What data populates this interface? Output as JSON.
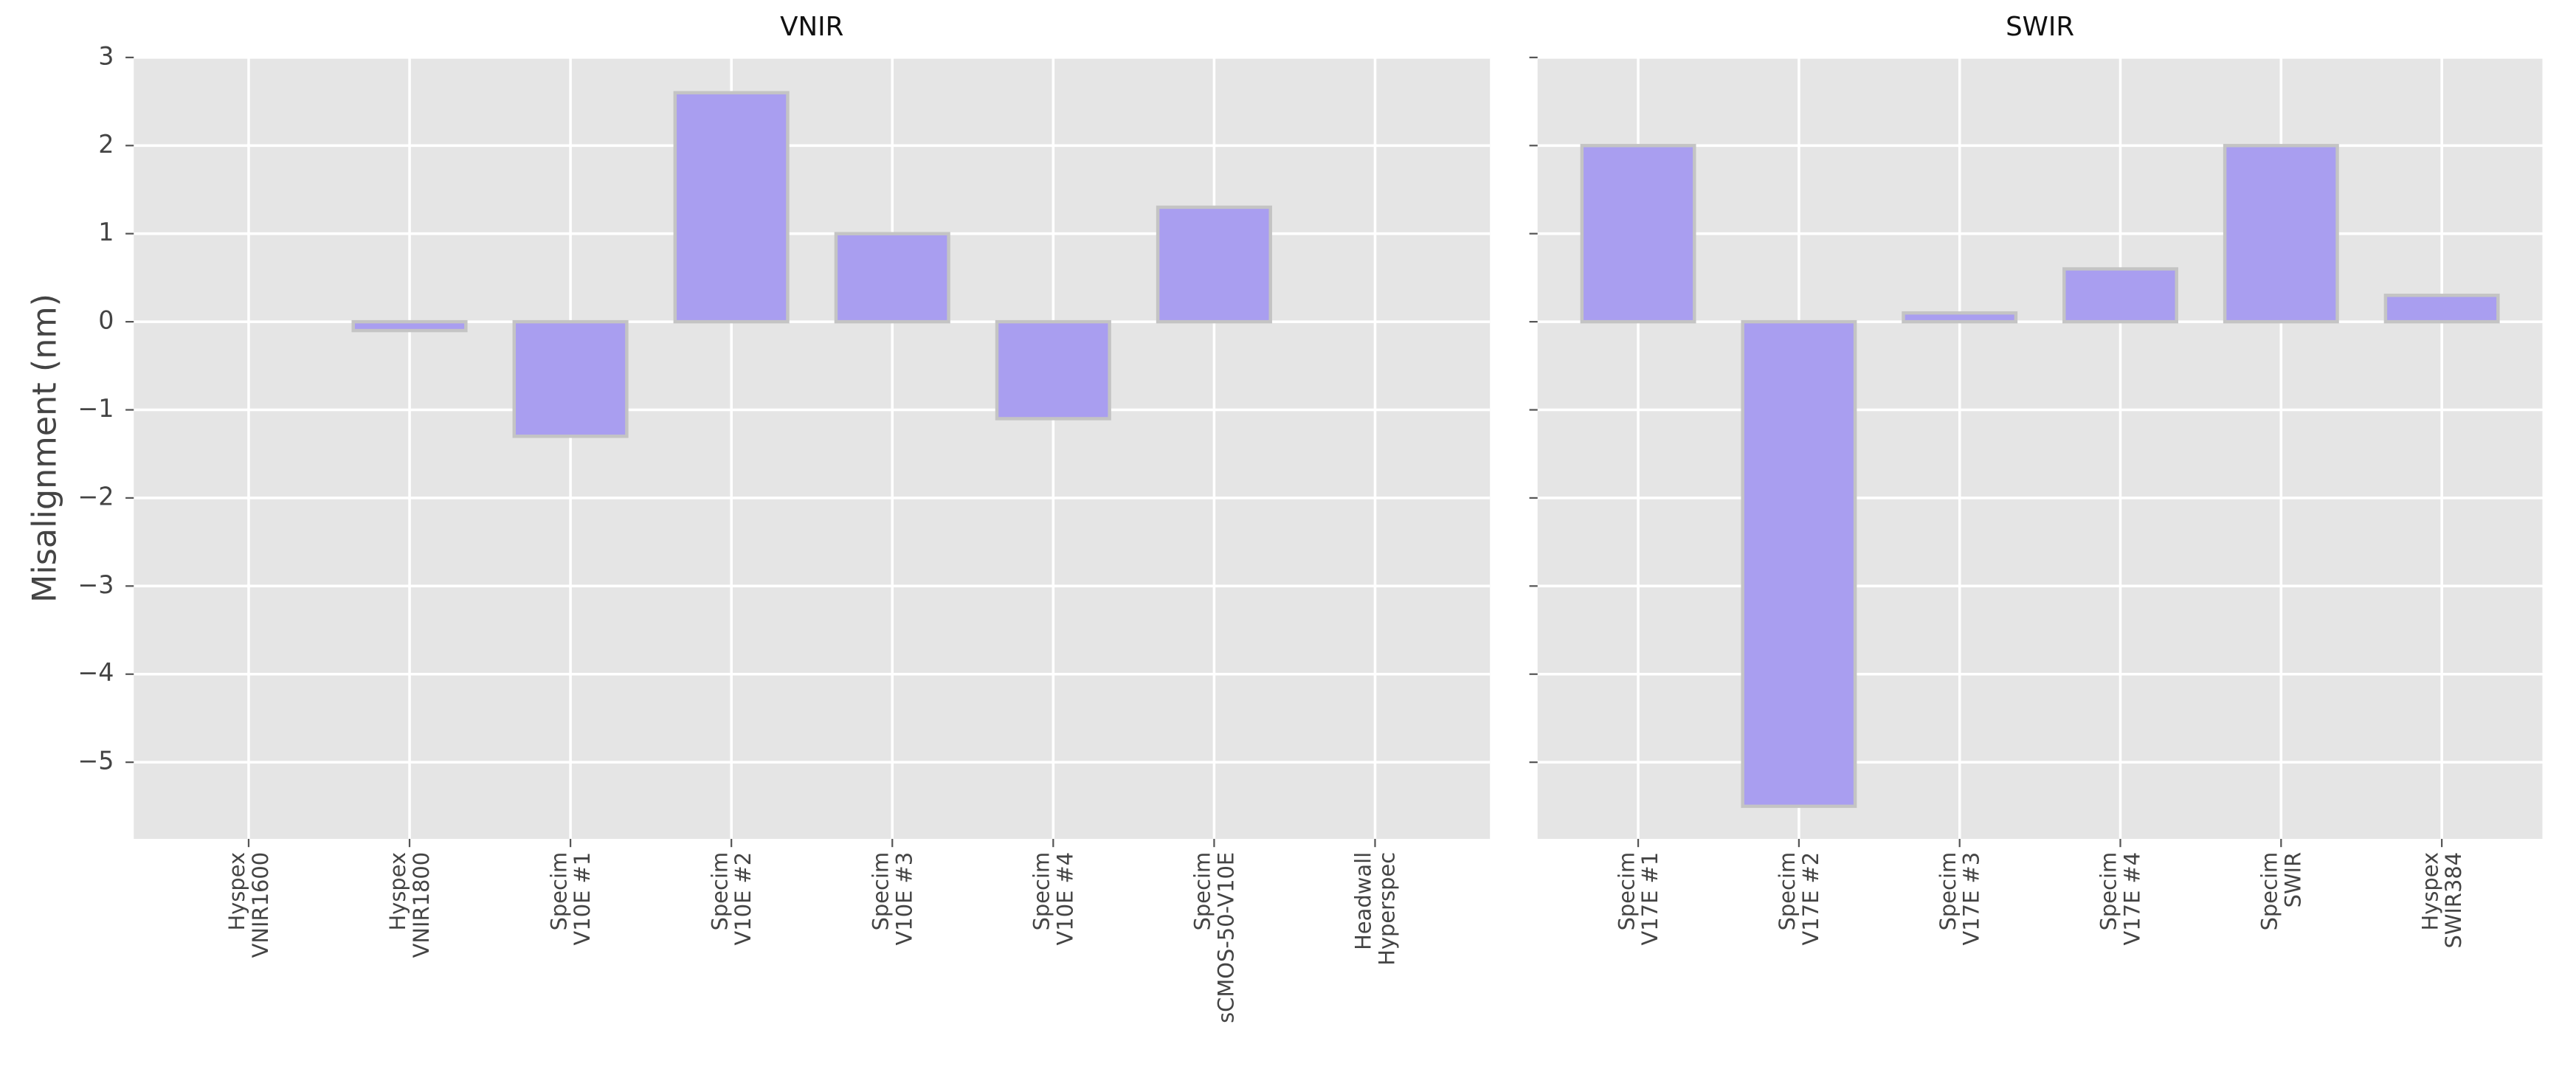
{
  "chart_data": [
    {
      "type": "bar",
      "title": "VNIR",
      "ylabel": "Misalignment (nm)",
      "categories": [
        "Hyspex\nVNIR1600",
        "Hyspex\nVNIR1800",
        "Specim\nV10E #1",
        "Specim\nV10E #2",
        "Specim\nV10E #3",
        "Specim\nV10E #4",
        "Specim\nsCMOS-50-V10E",
        "Headwall\nHyperspec"
      ],
      "values": [
        0.0,
        -0.1,
        -1.3,
        2.6,
        1.0,
        -1.1,
        1.3,
        0.0
      ],
      "color": "#a99ef0",
      "edgecolor": "#c4c4c4",
      "ylim": [
        -5.87,
        3
      ],
      "yticks": [
        {
          "value": -5,
          "label": "−5"
        },
        {
          "value": -4,
          "label": "−4"
        },
        {
          "value": -3,
          "label": "−3"
        },
        {
          "value": -2,
          "label": "−2"
        },
        {
          "value": -1,
          "label": "−1"
        },
        0,
        1,
        2,
        3
      ],
      "grid": true
    },
    {
      "type": "bar",
      "title": "SWIR",
      "categories": [
        "Specim\nV17E #1",
        "Specim\nV17E #2",
        "Specim\nV17E #3",
        "Specim\nV17E #4",
        "Specim\nSWIR",
        "Hyspex\nSWIR384"
      ],
      "values": [
        2.0,
        -5.5,
        0.1,
        0.6,
        2.0,
        0.3
      ],
      "color": "#a99ef0",
      "edgecolor": "#c4c4c4",
      "ylim": [
        -5.87,
        3
      ],
      "yticks": [
        {
          "value": -5,
          "label": "−5"
        },
        {
          "value": -4,
          "label": "−4"
        },
        {
          "value": -3,
          "label": "−3"
        },
        {
          "value": -2,
          "label": "−2"
        },
        {
          "value": -1,
          "label": "−1"
        },
        0,
        1,
        2,
        3
      ],
      "grid": true
    }
  ]
}
